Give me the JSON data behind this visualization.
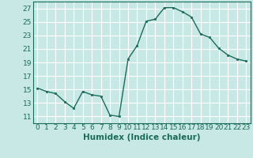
{
  "x": [
    0,
    1,
    2,
    3,
    4,
    5,
    6,
    7,
    8,
    9,
    10,
    11,
    12,
    13,
    14,
    15,
    16,
    17,
    18,
    19,
    20,
    21,
    22,
    23
  ],
  "y": [
    15.2,
    14.7,
    14.4,
    13.2,
    12.2,
    14.7,
    14.2,
    14.0,
    11.2,
    11.0,
    19.5,
    21.5,
    25.1,
    25.4,
    27.1,
    27.1,
    26.5,
    25.7,
    23.2,
    22.7,
    21.1,
    20.1,
    19.5,
    19.2
  ],
  "line_color": "#1a6b5a",
  "marker_color": "#1a6b5a",
  "bg_color": "#c8e8e5",
  "grid_color": "#ffffff",
  "tick_color": "#1a6b5a",
  "xlabel": "Humidex (Indice chaleur)",
  "xlim": [
    -0.5,
    23.5
  ],
  "ylim": [
    10,
    28
  ],
  "yticks": [
    11,
    13,
    15,
    17,
    19,
    21,
    23,
    25,
    27
  ],
  "xticks": [
    0,
    1,
    2,
    3,
    4,
    5,
    6,
    7,
    8,
    9,
    10,
    11,
    12,
    13,
    14,
    15,
    16,
    17,
    18,
    19,
    20,
    21,
    22,
    23
  ],
  "font_size": 6.5,
  "label_font_size": 7.5
}
